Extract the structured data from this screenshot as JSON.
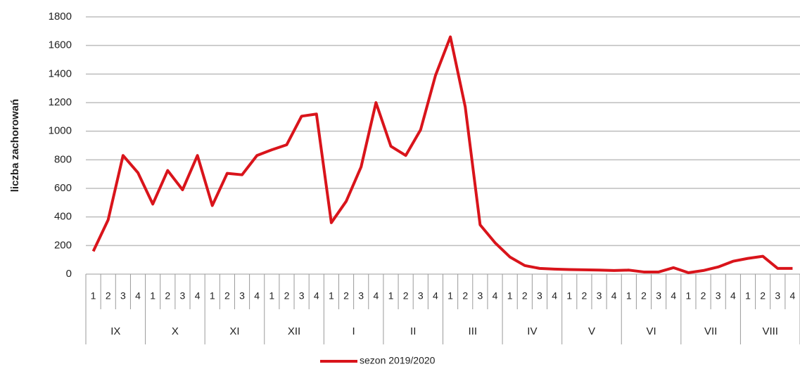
{
  "chart_data": {
    "type": "line",
    "ylabel": "liczba zachorowań",
    "categories": [
      "1",
      "2",
      "3",
      "4",
      "1",
      "2",
      "3",
      "4",
      "1",
      "2",
      "3",
      "4",
      "1",
      "2",
      "3",
      "4",
      "1",
      "2",
      "3",
      "4",
      "1",
      "2",
      "3",
      "4",
      "1",
      "2",
      "3",
      "4",
      "1",
      "2",
      "3",
      "4",
      "1",
      "2",
      "3",
      "4",
      "1",
      "2",
      "3",
      "4",
      "1",
      "2",
      "3",
      "4",
      "1",
      "2",
      "3",
      "4"
    ],
    "category_groups": [
      "IX",
      "X",
      "XI",
      "XII",
      "I",
      "II",
      "III",
      "IV",
      "V",
      "VI",
      "VII",
      "VIII"
    ],
    "series": [
      {
        "name": "sezon 2019/2020",
        "color": "#d9141b",
        "values": [
          160,
          380,
          830,
          710,
          490,
          725,
          590,
          830,
          480,
          705,
          695,
          830,
          870,
          905,
          1105,
          1120,
          360,
          510,
          750,
          1200,
          895,
          830,
          1010,
          1390,
          1660,
          1170,
          345,
          220,
          120,
          60,
          40,
          35,
          32,
          30,
          28,
          25,
          28,
          15,
          15,
          45,
          10,
          25,
          50,
          90,
          110,
          125,
          40,
          40
        ]
      }
    ],
    "ylim": [
      0,
      1800
    ],
    "yticks": [
      0,
      200,
      400,
      600,
      800,
      1000,
      1200,
      1400,
      1600,
      1800
    ],
    "grid": true,
    "legend": "bottom"
  }
}
